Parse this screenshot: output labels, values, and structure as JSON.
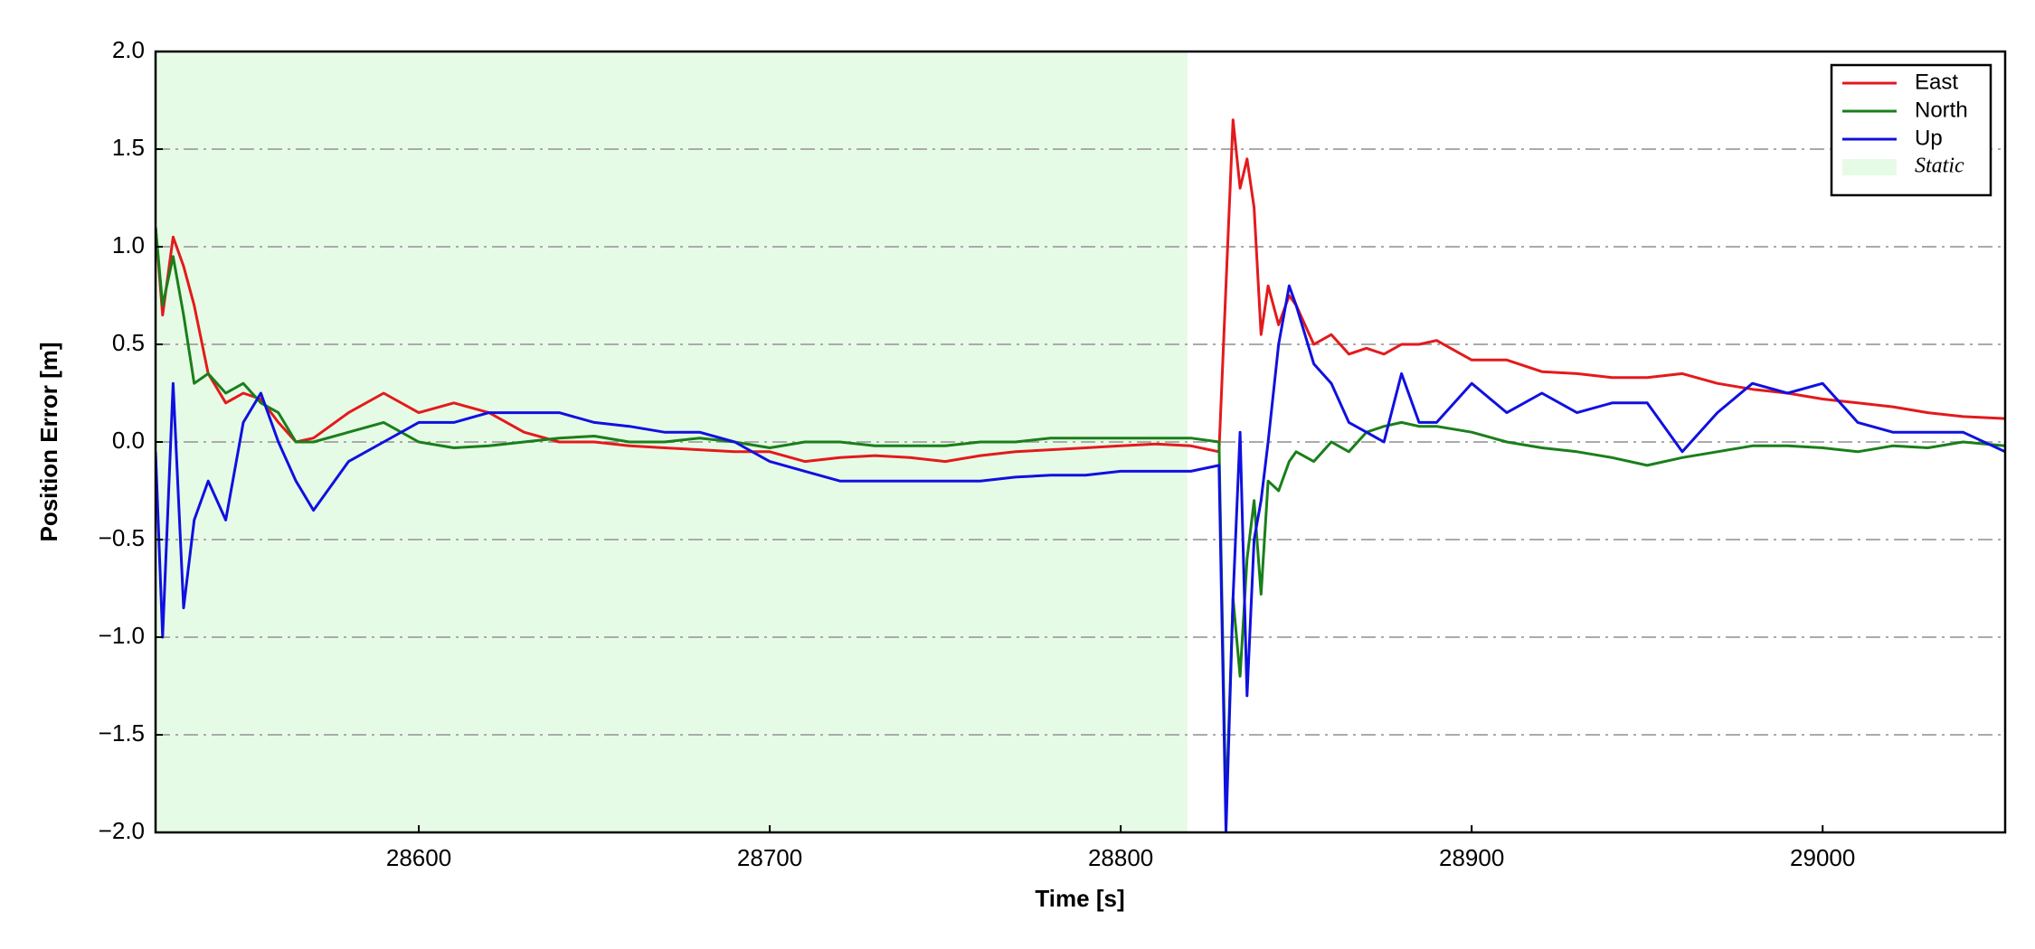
{
  "chart_data": {
    "type": "line",
    "xlabel": "Time [s]",
    "ylabel": "Position Error [m]",
    "xlim": [
      28525,
      29052
    ],
    "ylim": [
      -2.0,
      2.0
    ],
    "xticks": [
      28600,
      28700,
      28800,
      28900,
      29000
    ],
    "yticks": [
      {
        "value": -2.0,
        "label": "−2.0"
      },
      {
        "value": -1.5,
        "label": "−1.5"
      },
      {
        "value": -1.0,
        "label": "−1.0"
      },
      {
        "value": -0.5,
        "label": "−0.5"
      },
      {
        "value": 0.0,
        "label": "0.0"
      },
      0.5,
      {
        "value": 1.0,
        "label": "1.0"
      },
      1.5,
      {
        "value": 2.0,
        "label": "2.0"
      }
    ],
    "grid": true,
    "legend_position": "upper-right",
    "static_region": {
      "label": "Static",
      "xrange": [
        28525,
        28819
      ],
      "color": "#e6fbe6"
    },
    "x": [
      28525,
      28527,
      28530,
      28533,
      28536,
      28540,
      28545,
      28550,
      28555,
      28560,
      28565,
      28570,
      28580,
      28590,
      28600,
      28610,
      28620,
      28630,
      28640,
      28650,
      28660,
      28670,
      28680,
      28690,
      28700,
      28710,
      28720,
      28730,
      28740,
      28750,
      28760,
      28770,
      28780,
      28790,
      28800,
      28810,
      28820,
      28828,
      28830,
      28832,
      28834,
      28836,
      28838,
      28840,
      28842,
      28845,
      28848,
      28850,
      28855,
      28860,
      28865,
      28870,
      28875,
      28880,
      28885,
      28890,
      28900,
      28910,
      28920,
      28930,
      28940,
      28950,
      28960,
      28970,
      28980,
      28990,
      29000,
      29010,
      29020,
      29030,
      29040,
      29052
    ],
    "series": [
      {
        "name": "East",
        "color": "#e31a1c",
        "values": [
          1.1,
          0.65,
          1.05,
          0.9,
          0.7,
          0.35,
          0.2,
          0.25,
          0.22,
          0.1,
          0.0,
          0.02,
          0.15,
          0.25,
          0.15,
          0.2,
          0.15,
          0.05,
          0.0,
          0.0,
          -0.02,
          -0.03,
          -0.04,
          -0.05,
          -0.05,
          -0.1,
          -0.08,
          -0.07,
          -0.08,
          -0.1,
          -0.07,
          -0.05,
          -0.04,
          -0.03,
          -0.02,
          -0.01,
          -0.02,
          -0.05,
          0.8,
          1.65,
          1.3,
          1.45,
          1.2,
          0.55,
          0.8,
          0.6,
          0.75,
          0.7,
          0.5,
          0.55,
          0.45,
          0.48,
          0.45,
          0.5,
          0.5,
          0.52,
          0.42,
          0.42,
          0.36,
          0.35,
          0.33,
          0.33,
          0.35,
          0.3,
          0.27,
          0.25,
          0.22,
          0.2,
          0.18,
          0.15,
          0.13,
          0.12
        ]
      },
      {
        "name": "North",
        "color": "#1a7f1a",
        "values": [
          1.1,
          0.7,
          0.95,
          0.65,
          0.3,
          0.35,
          0.25,
          0.3,
          0.2,
          0.15,
          0.0,
          0.0,
          0.05,
          0.1,
          0.0,
          -0.03,
          -0.02,
          0.0,
          0.02,
          0.03,
          0.0,
          0.0,
          0.02,
          0.0,
          -0.03,
          0.0,
          0.0,
          -0.02,
          -0.02,
          -0.02,
          0.0,
          0.0,
          0.02,
          0.02,
          0.02,
          0.02,
          0.02,
          0.0,
          -1.9,
          -0.8,
          -1.2,
          -0.6,
          -0.3,
          -0.78,
          -0.2,
          -0.25,
          -0.1,
          -0.05,
          -0.1,
          0.0,
          -0.05,
          0.05,
          0.08,
          0.1,
          0.08,
          0.08,
          0.05,
          0.0,
          -0.03,
          -0.05,
          -0.08,
          -0.12,
          -0.08,
          -0.05,
          -0.02,
          -0.02,
          -0.03,
          -0.05,
          -0.02,
          -0.03,
          0.0,
          -0.02
        ]
      },
      {
        "name": "Up",
        "color": "#1010e0",
        "values": [
          -0.05,
          -1.0,
          0.3,
          -0.85,
          -0.4,
          -0.2,
          -0.4,
          0.1,
          0.25,
          0.0,
          -0.2,
          -0.35,
          -0.1,
          0.0,
          0.1,
          0.1,
          0.15,
          0.15,
          0.15,
          0.1,
          0.08,
          0.05,
          0.05,
          0.0,
          -0.1,
          -0.15,
          -0.2,
          -0.2,
          -0.2,
          -0.2,
          -0.2,
          -0.18,
          -0.17,
          -0.17,
          -0.15,
          -0.15,
          -0.15,
          -0.12,
          -2.0,
          -0.8,
          0.05,
          -1.3,
          -0.5,
          -0.3,
          0.0,
          0.5,
          0.8,
          0.7,
          0.4,
          0.3,
          0.1,
          0.05,
          0.0,
          0.35,
          0.1,
          0.1,
          0.3,
          0.15,
          0.25,
          0.15,
          0.2,
          0.2,
          -0.05,
          0.15,
          0.3,
          0.25,
          0.3,
          0.1,
          0.05,
          0.05,
          0.05,
          -0.05
        ]
      }
    ]
  }
}
